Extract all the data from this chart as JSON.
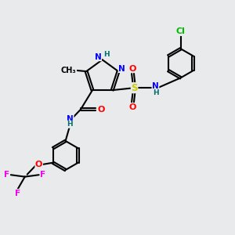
{
  "background_color": "#e8eaec",
  "atom_colors": {
    "N": "#0000ff",
    "O": "#ff0000",
    "S": "#cccc00",
    "Cl": "#00bb00",
    "F": "#ee00ee",
    "C": "#000000",
    "H": "#007070"
  },
  "bond_color": "#000000",
  "bond_width": 1.5,
  "figsize": [
    3.0,
    3.0
  ],
  "dpi": 100
}
